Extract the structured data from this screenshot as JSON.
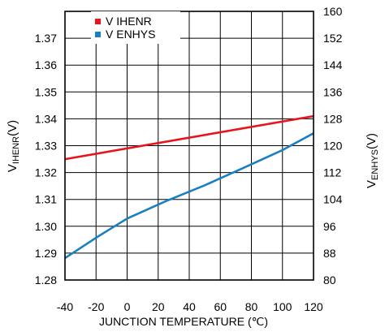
{
  "chart_data": {
    "type": "line",
    "title": "",
    "xlabel": "JUNCTION TEMPERATURE (℃)",
    "ylabel": {
      "main": "V",
      "sub": "IHENR",
      "unit": "(V)"
    },
    "ylabel2": {
      "main": "V",
      "sub": "ENHYS",
      "unit": "(V)"
    },
    "xlim": [
      -40,
      120
    ],
    "ylim": [
      1.28,
      1.38
    ],
    "ylim2": [
      80,
      160
    ],
    "x_ticks": [
      "-40",
      "-20",
      "0",
      "20",
      "40",
      "60",
      "80",
      "100",
      "120"
    ],
    "y_ticks": [
      "1.28",
      "1.29",
      "1.30",
      "1.31",
      "1.32",
      "1.33",
      "1.34",
      "1.35",
      "1.36",
      "1.37"
    ],
    "y2_ticks": [
      "80",
      "88",
      "96",
      "104",
      "112",
      "120",
      "128",
      "136",
      "144",
      "152",
      "160"
    ],
    "grid": true,
    "legend": "top-left",
    "series": [
      {
        "name": "V IHENR",
        "axis": "left",
        "color": "#e8141d",
        "x": [
          -40,
          120
        ],
        "y": [
          1.325,
          1.341
        ]
      },
      {
        "name": "V ENHYS",
        "axis": "right",
        "color": "#1a7fc1",
        "x": [
          -40,
          -20,
          0,
          25,
          50,
          75,
          100,
          120
        ],
        "y": [
          86.5,
          92.6,
          98.3,
          103.5,
          108.2,
          113.4,
          118.7,
          123.7
        ]
      }
    ]
  }
}
